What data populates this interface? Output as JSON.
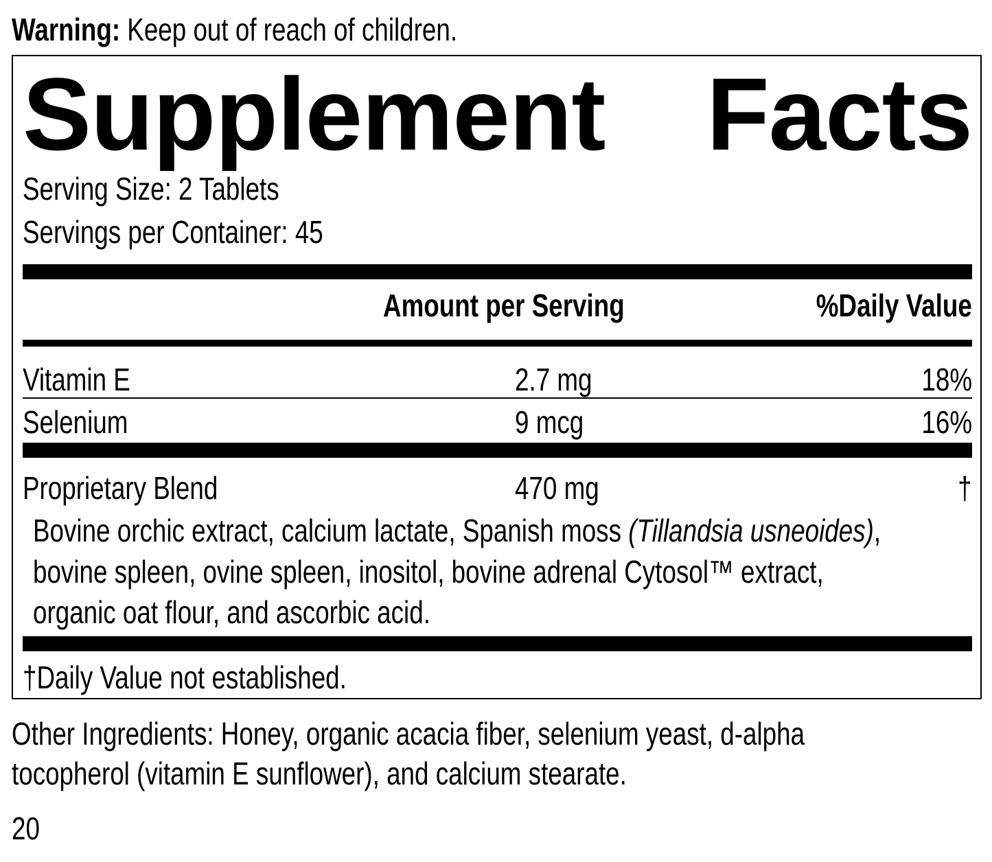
{
  "warning": {
    "label": "Warning:",
    "text": " Keep out of reach of children."
  },
  "panel": {
    "title_word1": "Supplement",
    "title_word2": "Facts",
    "serving_size": "Serving Size: 2 Tablets",
    "servings_per_container": "Servings per Container: 45",
    "header": {
      "amount": "Amount per Serving",
      "daily_value": "%Daily Value"
    },
    "rows": [
      {
        "name": "Vitamin E",
        "amount": "2.7 mg",
        "dv": "18%"
      },
      {
        "name": "Selenium",
        "amount": "9 mcg",
        "dv": "16%"
      },
      {
        "name": "Proprietary Blend",
        "amount": "470 mg",
        "dv": "†"
      }
    ],
    "blend": {
      "line1_a": "Bovine orchic extract, calcium lactate, Spanish moss ",
      "line1_italic": "(Tillandsia usneoides)",
      "line1_b": ",",
      "line2": "bovine spleen, ovine spleen, inositol, bovine adrenal Cytosol™ extract,",
      "line3": "organic oat flour, and ascorbic acid."
    },
    "footnote": "†Daily Value not established."
  },
  "other_ingredients": {
    "line1": "Other Ingredients: Honey, organic acacia fiber, selenium yeast, d-alpha",
    "line2": "tocopherol (vitamin E sunflower), and calcium stearate."
  },
  "page_number": "20"
}
